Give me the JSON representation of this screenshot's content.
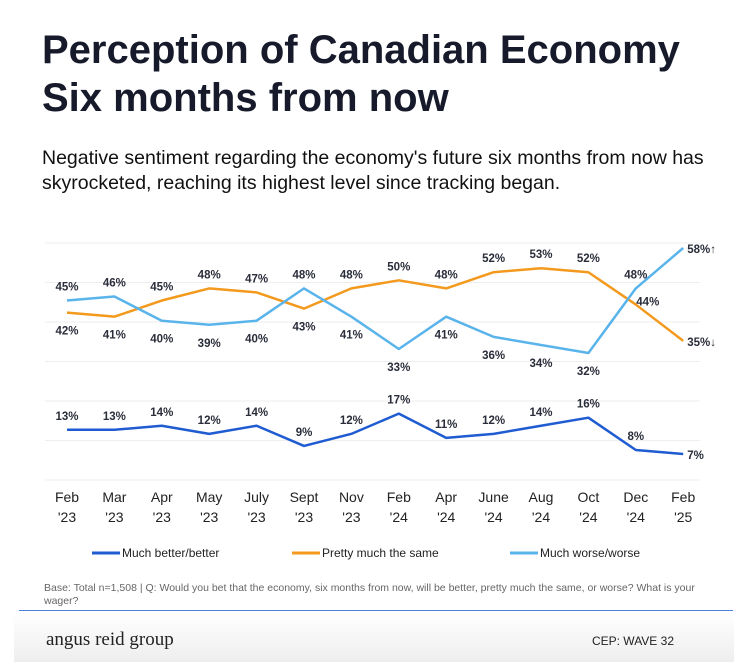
{
  "title_line1": "Perception of Canadian Economy",
  "title_line2": "Six months from now",
  "subtitle": "Negative sentiment regarding the economy's future six months from now has skyrocketed, reaching its highest level since tracking began.",
  "base_note": "Base: Total n=1,508 | Q: Would you bet that the economy, six months from now, will be better, pretty much the same, or worse? What is your wager?",
  "footer": {
    "logo": "angus reid group",
    "wave": "CEP: WAVE 32"
  },
  "chart_data": {
    "type": "line",
    "categories": [
      [
        "Feb",
        "'23"
      ],
      [
        "Mar",
        "'23"
      ],
      [
        "Apr",
        "'23"
      ],
      [
        "May",
        "'23"
      ],
      [
        "July",
        "'23"
      ],
      [
        "Sept",
        "'23"
      ],
      [
        "Nov",
        "'23"
      ],
      [
        "Feb",
        "'24"
      ],
      [
        "Apr",
        "'24"
      ],
      [
        "June",
        "'24"
      ],
      [
        "Aug",
        "'24"
      ],
      [
        "Oct",
        "'24"
      ],
      [
        "Dec",
        "'24"
      ],
      [
        "Feb",
        "'25"
      ]
    ],
    "unit": "%",
    "series": [
      {
        "name": "Much better/better",
        "color": "#1f5bd1",
        "values": [
          13,
          13,
          14,
          12,
          14,
          9,
          12,
          17,
          11,
          12,
          14,
          16,
          8,
          7
        ]
      },
      {
        "name": "Pretty much the same",
        "color": "#f39a1e",
        "values": [
          42,
          41,
          45,
          48,
          47,
          43,
          48,
          50,
          48,
          52,
          53,
          52,
          44,
          35
        ],
        "end_marker": "↓"
      },
      {
        "name": "Much worse/worse",
        "color": "#5ab4ec",
        "values": [
          45,
          46,
          40,
          39,
          40,
          48,
          41,
          33,
          41,
          36,
          34,
          32,
          48,
          58
        ],
        "end_marker": "↑"
      }
    ],
    "legend_position": "bottom",
    "grid": true
  }
}
